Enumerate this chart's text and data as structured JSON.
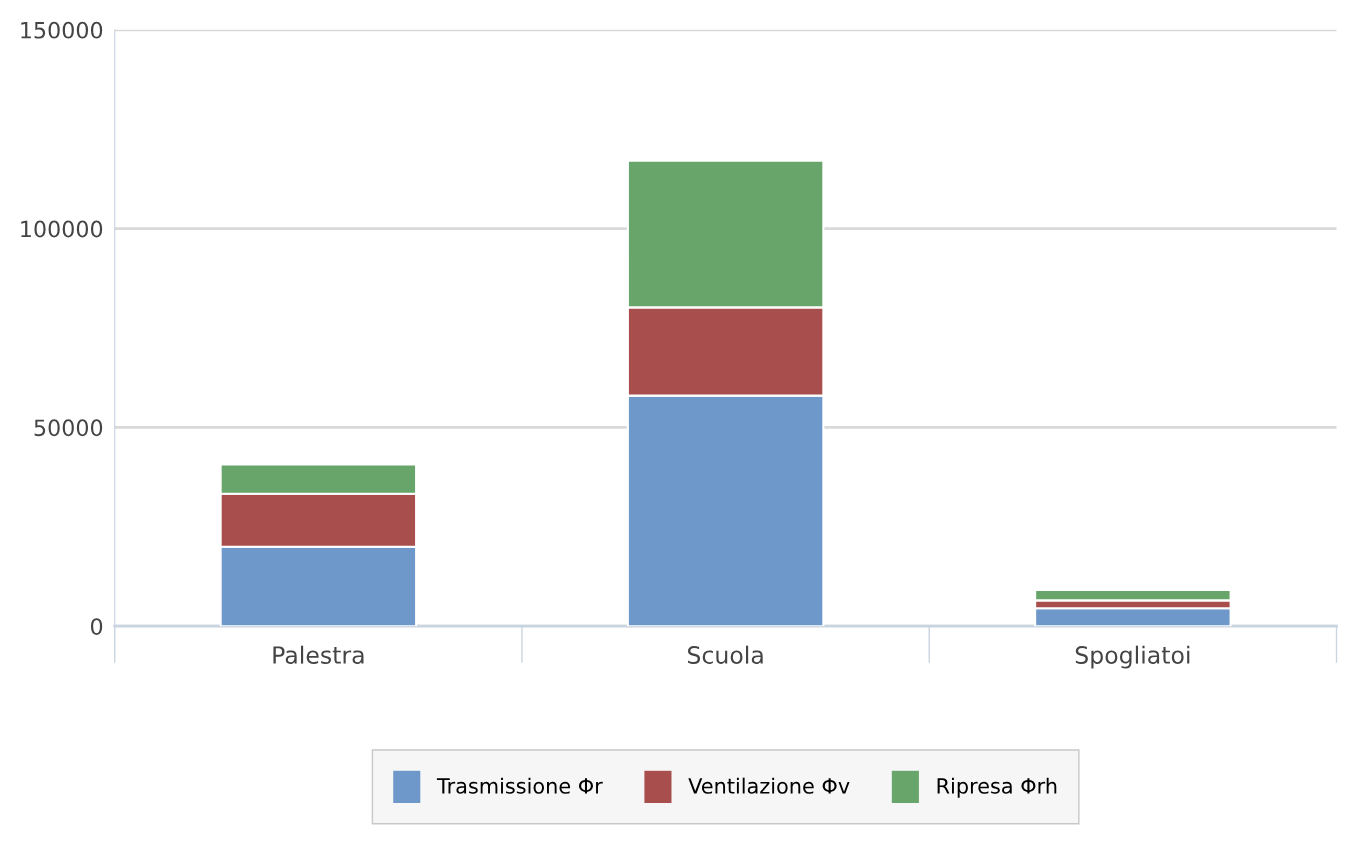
{
  "chart_data": {
    "type": "bar",
    "stacked": true,
    "categories": [
      "Palestra",
      "Scuola",
      "Spogliatoi"
    ],
    "series": [
      {
        "name": "Trasmissione Φr",
        "color": "#6f98ca",
        "values": [
          20000,
          58000,
          4500
        ]
      },
      {
        "name": "Ventilazione Φv",
        "color": "#a84e4c",
        "values": [
          13300,
          22200,
          2000
        ]
      },
      {
        "name": "Ripresa Φrh",
        "color": "#67a56a",
        "values": [
          7400,
          36900,
          2600
        ]
      }
    ],
    "ylim": [
      0,
      150000
    ],
    "yticks": [
      0,
      50000,
      100000,
      150000
    ],
    "grid": "y",
    "legend": "bottom"
  }
}
